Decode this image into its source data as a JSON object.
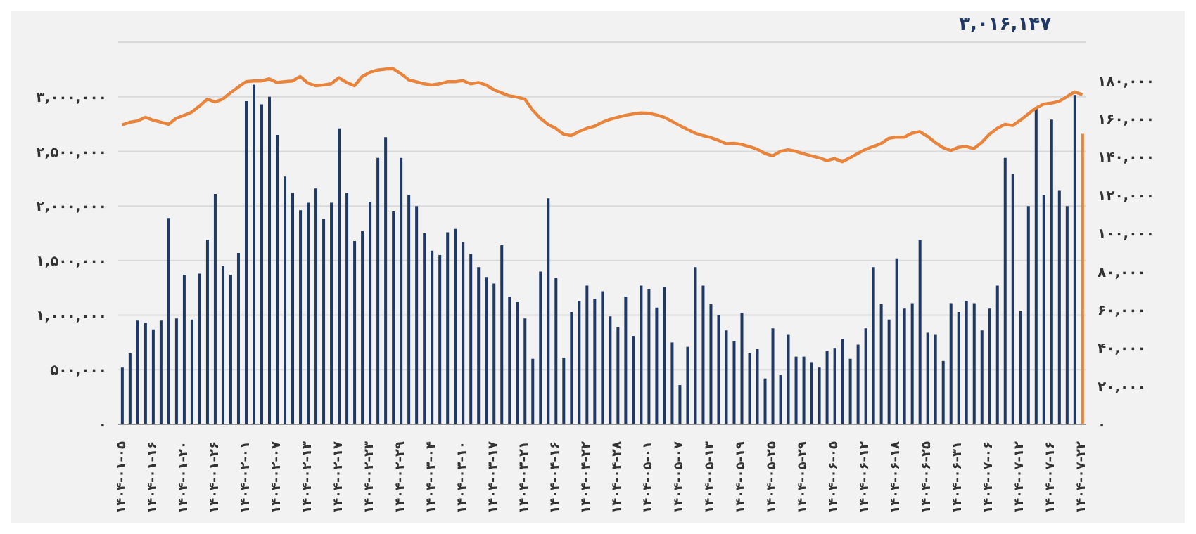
{
  "chart_data": {
    "type": "bar",
    "categories": [
      "۱۴۰۴-۰۱-۰۵",
      null,
      null,
      null,
      "۱۴۰۴-۰۱-۱۶",
      null,
      null,
      null,
      "۱۴۰۴-۰۱-۲۰",
      null,
      null,
      null,
      "۱۴۰۴-۰۱-۲۶",
      null,
      null,
      null,
      "۱۴۰۴-۰۲-۰۱",
      null,
      null,
      null,
      "۱۴۰۴-۰۲-۰۷",
      null,
      null,
      null,
      "۱۴۰۴-۰۲-۱۳",
      null,
      null,
      null,
      "۱۴۰۴-۰۲-۱۷",
      null,
      null,
      null,
      "۱۴۰۴-۰۲-۲۳",
      null,
      null,
      null,
      "۱۴۰۴-۰۲-۲۹",
      null,
      null,
      null,
      "۱۴۰۴-۰۳-۰۴",
      null,
      null,
      null,
      "۱۴۰۴-۰۳-۱۰",
      null,
      null,
      null,
      "۱۴۰۴-۰۳-۱۷",
      null,
      null,
      null,
      "۱۴۰۴-۰۳-۲۱",
      null,
      null,
      null,
      "۱۴۰۴-۰۴-۱۶",
      null,
      null,
      null,
      "۱۴۰۴-۰۴-۲۲",
      null,
      null,
      null,
      "۱۴۰۴-۰۴-۲۸",
      null,
      null,
      null,
      "۱۴۰۴-۰۵-۰۱",
      null,
      null,
      null,
      "۱۴۰۴-۰۵-۰۷",
      null,
      null,
      null,
      "۱۴۰۴-۰۵-۱۳",
      null,
      null,
      null,
      "۱۴۰۴-۰۵-۱۹",
      null,
      null,
      null,
      "۱۴۰۴-۰۵-۲۵",
      null,
      null,
      null,
      "۱۴۰۴-۰۵-۲۹",
      null,
      null,
      null,
      "۱۴۰۴-۰۶-۰۵",
      null,
      null,
      null,
      "۱۴۰۴-۰۶-۱۲",
      null,
      null,
      null,
      "۱۴۰۴-۰۶-۱۸",
      null,
      null,
      null,
      "۱۴۰۴-۰۶-۲۵",
      null,
      null,
      null,
      "۱۴۰۴-۰۶-۳۱",
      null,
      null,
      null,
      "۱۴۰۴-۰۷-۰۶",
      null,
      null,
      null,
      "۱۴۰۴-۰۷-۱۲",
      null,
      null,
      null,
      "۱۴۰۴-۰۷-۱۶",
      null,
      null,
      null,
      "۱۴۰۴-۰۷-۲۲"
    ],
    "series": [
      {
        "colors": [
          "#1f3864",
          "#1f3864",
          "#1f3864",
          "#1f3864",
          "#1f3864",
          "#1f3864",
          "#1f3864",
          "#1f3864",
          "#1f3864",
          "#1f3864",
          "#1f3864",
          "#1f3864",
          "#1f3864",
          "#1f3864",
          "#1f3864",
          "#1f3864",
          "#1f3864",
          "#1f3864",
          "#1f3864",
          "#1f3864",
          "#1f3864",
          "#1f3864",
          "#1f3864",
          "#1f3864",
          "#1f3864",
          "#1f3864",
          "#1f3864",
          "#1f3864",
          "#1f3864",
          "#1f3864",
          "#1f3864",
          "#1f3864",
          "#1f3864",
          "#1f3864",
          "#1f3864",
          "#1f3864",
          "#1f3864",
          "#1f3864",
          "#1f3864",
          "#1f3864",
          "#1f3864",
          "#1f3864",
          "#1f3864",
          "#1f3864",
          "#1f3864",
          "#1f3864",
          "#1f3864",
          "#1f3864",
          "#1f3864",
          "#1f3864",
          "#1f3864",
          "#1f3864",
          "#1f3864",
          "#1f3864",
          "#1f3864",
          "#1f3864",
          "#1f3864",
          "#1f3864",
          "#1f3864",
          "#1f3864",
          "#1f3864",
          "#1f3864",
          "#1f3864",
          "#1f3864",
          "#1f3864",
          "#1f3864",
          "#1f3864",
          "#1f3864",
          "#1f3864",
          "#1f3864",
          "#1f3864",
          "#1f3864",
          "#1f3864",
          "#1f3864",
          "#1f3864",
          "#1f3864",
          "#1f3864",
          "#1f3864",
          "#1f3864",
          "#1f3864",
          "#1f3864",
          "#1f3864",
          "#1f3864",
          "#1f3864",
          "#1f3864",
          "#1f3864",
          "#1f3864",
          "#1f3864",
          "#1f3864",
          "#1f3864",
          "#1f3864",
          "#1f3864",
          "#1f3864",
          "#1f3864",
          "#1f3864",
          "#1f3864",
          "#1f3864",
          "#1f3864",
          "#1f3864",
          "#1f3864",
          "#1f3864",
          "#1f3864",
          "#1f3864",
          "#1f3864",
          "#1f3864",
          "#1f3864",
          "#1f3864",
          "#1f3864",
          "#1f3864",
          "#1f3864",
          "#1f3864",
          "#1f3864",
          "#1f3864",
          "#1f3864",
          "#1f3864",
          "#1f3864",
          "#1f3864",
          "#1f3864",
          "#1f3864",
          "#1f3864",
          "#1f3864",
          "#1f3864",
          "#1f3864",
          "#1f3864",
          "#e8843c"
        ],
        "values": [
          520000,
          650000,
          950000,
          930000,
          870000,
          950000,
          1890000,
          970000,
          1370000,
          960000,
          1380000,
          1690000,
          2110000,
          1450000,
          1370000,
          1570000,
          2960000,
          3110000,
          2930000,
          3000000,
          2650000,
          2270000,
          2120000,
          1960000,
          2030000,
          2160000,
          1880000,
          2030000,
          2710000,
          2120000,
          1680000,
          1770000,
          2040000,
          2440000,
          2630000,
          1950000,
          2440000,
          2100000,
          2000000,
          1750000,
          1590000,
          1550000,
          1760000,
          1790000,
          1670000,
          1560000,
          1440000,
          1350000,
          1290000,
          1640000,
          1170000,
          1120000,
          970000,
          600000,
          1400000,
          2070000,
          1340000,
          610000,
          1030000,
          1130000,
          1270000,
          1150000,
          1220000,
          990000,
          890000,
          1170000,
          810000,
          1270000,
          1240000,
          1070000,
          1260000,
          750000,
          360000,
          710000,
          1440000,
          1270000,
          1100000,
          1000000,
          860000,
          760000,
          1020000,
          650000,
          690000,
          420000,
          880000,
          450000,
          820000,
          620000,
          620000,
          570000,
          520000,
          670000,
          700000,
          780000,
          600000,
          730000,
          880000,
          1440000,
          1100000,
          960000,
          1520000,
          1060000,
          1110000,
          1690000,
          840000,
          820000,
          580000,
          1110000,
          1030000,
          1130000,
          1110000,
          860000,
          1060000,
          1270000,
          2440000,
          2290000,
          1040000,
          2000000,
          2890000,
          2100000,
          2790000,
          2140000,
          2000000,
          3016147,
          2660000
        ]
      },
      {
        "type": "line",
        "axis": "y2",
        "color": "#e8843c",
        "values": [
          156700,
          158100,
          158800,
          160700,
          159200,
          158100,
          157000,
          160200,
          161700,
          163400,
          166600,
          170200,
          168700,
          170200,
          173500,
          176500,
          179300,
          179700,
          179700,
          180800,
          178900,
          179300,
          179700,
          182000,
          178600,
          177200,
          177600,
          178200,
          181400,
          178900,
          177200,
          182000,
          184200,
          185400,
          185900,
          186100,
          183500,
          180300,
          179300,
          178200,
          177600,
          178200,
          179300,
          179300,
          179900,
          178200,
          178900,
          177600,
          175100,
          173500,
          171900,
          171300,
          170200,
          164500,
          160200,
          157000,
          154900,
          151800,
          151100,
          153200,
          154900,
          156000,
          158100,
          159600,
          160700,
          161700,
          162400,
          163000,
          162800,
          161900,
          160700,
          158600,
          156400,
          154300,
          152400,
          151100,
          150100,
          148600,
          146900,
          147100,
          146500,
          145400,
          144000,
          141800,
          140500,
          142900,
          143700,
          142900,
          141600,
          140500,
          139500,
          138000,
          139100,
          137400,
          139500,
          141800,
          143900,
          145400,
          146900,
          149700,
          150300,
          150300,
          152400,
          153200,
          150700,
          147500,
          144800,
          143300,
          145000,
          145400,
          144300,
          147500,
          151800,
          154900,
          157000,
          156400,
          159200,
          162400,
          165500,
          167600,
          168100,
          169100,
          171500,
          174000,
          172500
        ]
      }
    ],
    "ylim": [
      0,
      3500000
    ],
    "yticks": [
      {
        "value": 0,
        "label": "۰"
      },
      {
        "value": 500000,
        "label": "۵۰۰,۰۰۰"
      },
      {
        "value": 1000000,
        "label": "۱,۰۰۰,۰۰۰"
      },
      {
        "value": 1500000,
        "label": "۱,۵۰۰,۰۰۰"
      },
      {
        "value": 2000000,
        "label": "۲,۰۰۰,۰۰۰"
      },
      {
        "value": 2500000,
        "label": "۲,۵۰۰,۰۰۰"
      },
      {
        "value": 3000000,
        "label": "۳,۰۰۰,۰۰۰"
      }
    ],
    "y2lim": [
      0,
      200000
    ],
    "y2ticks": [
      {
        "value": 0,
        "label": "۰"
      },
      {
        "value": 20000,
        "label": "۲۰,۰۰۰"
      },
      {
        "value": 40000,
        "label": "۴۰,۰۰۰"
      },
      {
        "value": 60000,
        "label": "۶۰,۰۰۰"
      },
      {
        "value": 80000,
        "label": "۸۰,۰۰۰"
      },
      {
        "value": 100000,
        "label": "۱۰۰,۰۰۰"
      },
      {
        "value": 120000,
        "label": "۱۲۰,۰۰۰"
      },
      {
        "value": 140000,
        "label": "۱۴۰,۰۰۰"
      },
      {
        "value": 160000,
        "label": "۱۶۰,۰۰۰"
      },
      {
        "value": 180000,
        "label": "۱۸۰,۰۰۰"
      }
    ],
    "annotations": [
      "۳,۰۱۶,۱۴۷"
    ],
    "grid": "y",
    "marker": "none"
  }
}
